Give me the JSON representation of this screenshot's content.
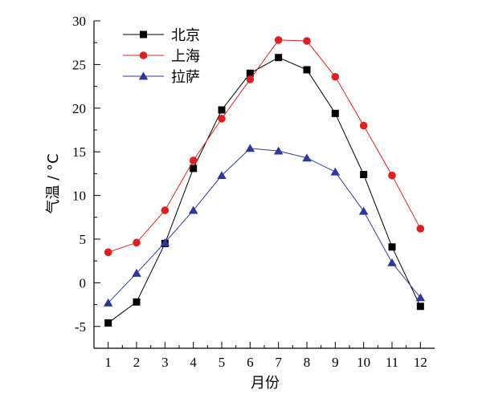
{
  "chart_data": {
    "type": "line",
    "title": "",
    "xlabel": "月份",
    "ylabel": "气温 / °C",
    "x": [
      1,
      2,
      3,
      4,
      5,
      6,
      7,
      8,
      9,
      10,
      11,
      12
    ],
    "xlim": [
      0.5,
      12.5
    ],
    "ylim": [
      -7.5,
      30
    ],
    "xticks": [
      1,
      2,
      3,
      4,
      5,
      6,
      7,
      8,
      9,
      10,
      11,
      12
    ],
    "yticks": [
      -5,
      0,
      5,
      10,
      15,
      20,
      25,
      30
    ],
    "grid": false,
    "legend_position": "top-left",
    "series": [
      {
        "name": "北京",
        "color": "#000000",
        "marker": "square",
        "values": [
          -4.6,
          -2.2,
          4.5,
          13.1,
          19.8,
          24.0,
          25.8,
          24.4,
          19.4,
          12.4,
          4.1,
          -2.7
        ]
      },
      {
        "name": "上海",
        "color": "#e02020",
        "marker": "circle",
        "values": [
          3.5,
          4.6,
          8.3,
          14.0,
          18.8,
          23.3,
          27.8,
          27.7,
          23.6,
          18.0,
          12.3,
          6.2
        ]
      },
      {
        "name": "拉萨",
        "color": "#2b3a9a",
        "marker": "triangle",
        "values": [
          -2.3,
          1.1,
          4.6,
          8.3,
          12.3,
          15.4,
          15.1,
          14.3,
          12.7,
          8.2,
          2.3,
          -1.7
        ]
      }
    ]
  }
}
